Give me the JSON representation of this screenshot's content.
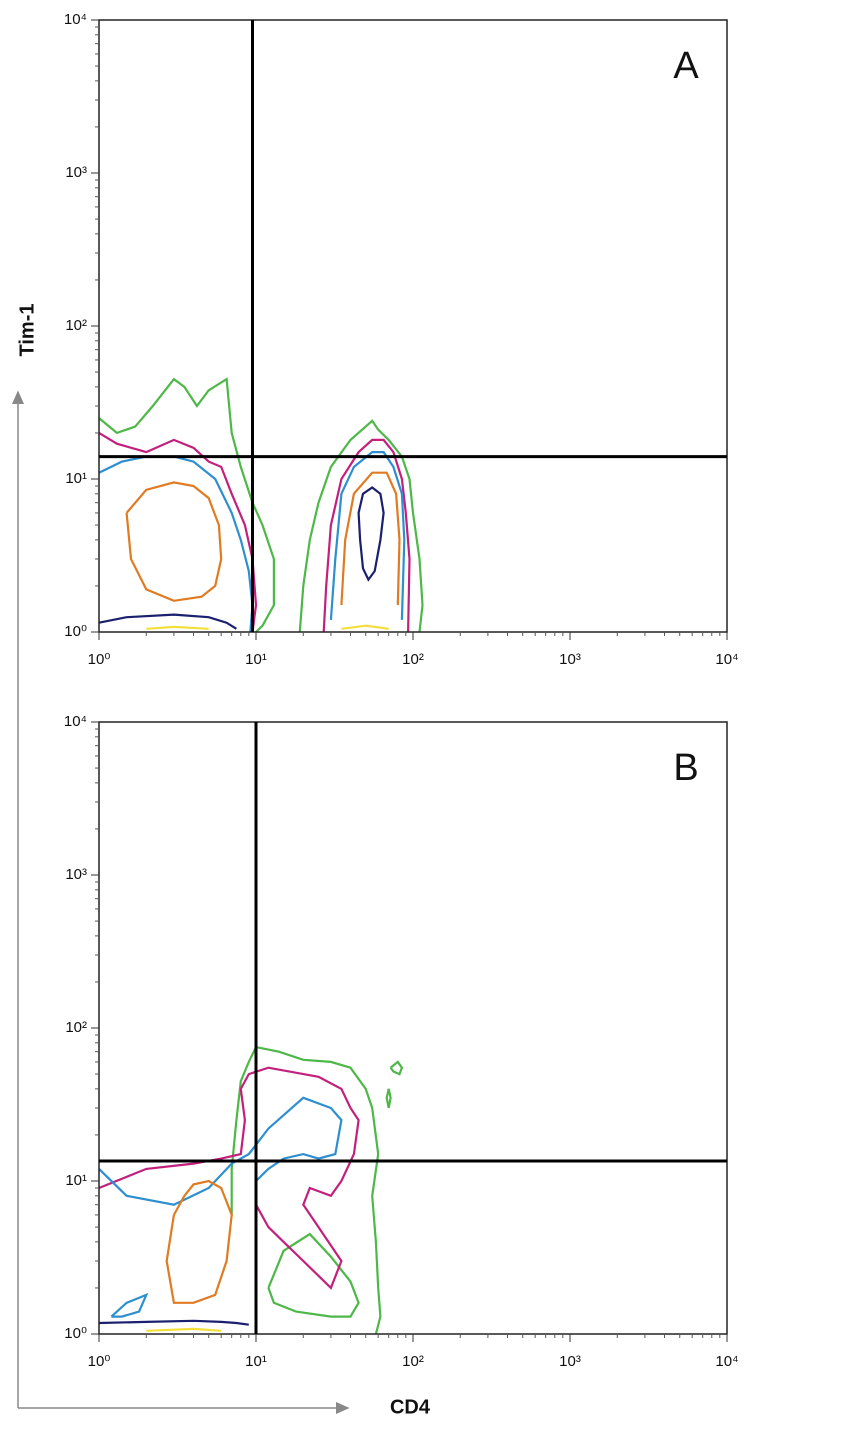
{
  "chart_data": [
    {
      "type": "contour",
      "panel_label": "A",
      "ylabel": "Tim-1",
      "log_scale": true,
      "xlim": [
        1,
        10000
      ],
      "ylim": [
        1,
        10000
      ],
      "xticks": [
        {
          "value": 1,
          "label": "10⁰"
        },
        {
          "value": 10,
          "label": "10¹"
        },
        {
          "value": 100,
          "label": "10²"
        },
        {
          "value": 1000,
          "label": "10³"
        },
        {
          "value": 10000,
          "label": "10⁴"
        }
      ],
      "yticks": [
        {
          "value": 1,
          "label": "10⁰"
        },
        {
          "value": 10,
          "label": "10¹"
        },
        {
          "value": 100,
          "label": "10²"
        },
        {
          "value": 1000,
          "label": "10³"
        },
        {
          "value": 10000,
          "label": "10⁴"
        }
      ],
      "xminorticks": [
        2,
        3,
        4,
        5,
        6,
        7,
        8,
        9,
        20,
        30,
        40,
        50,
        60,
        70,
        80,
        90,
        200,
        300,
        400,
        500,
        600,
        700,
        800,
        900,
        2000,
        3000,
        4000,
        5000,
        6000,
        7000,
        8000,
        9000
      ],
      "yminorticks": [
        2,
        3,
        4,
        5,
        6,
        7,
        8,
        9,
        20,
        30,
        40,
        50,
        60,
        70,
        80,
        90,
        200,
        300,
        400,
        500,
        600,
        700,
        800,
        900,
        2000,
        3000,
        4000,
        5000,
        6000,
        7000,
        8000,
        9000
      ],
      "quadrant": {
        "x": 9.5,
        "y": 14
      },
      "contours": [
        {
          "color": "#4db848",
          "x": [
            1,
            1.3,
            1.7,
            2.2,
            3,
            3.5,
            4.2,
            5,
            6.5,
            7,
            8,
            9.5,
            11,
            13,
            13,
            11,
            10
          ],
          "y": [
            25,
            20,
            22,
            30,
            45,
            40,
            30,
            38,
            45,
            20,
            12,
            7,
            5,
            3,
            1.5,
            1.1,
            1
          ]
        },
        {
          "color": "#c2207c",
          "x": [
            1,
            1.3,
            2,
            3,
            4,
            5,
            6,
            7,
            8.5,
            9.5,
            10,
            9.5
          ],
          "y": [
            20,
            17,
            15,
            18,
            16,
            13,
            12,
            8,
            5,
            3,
            1.5,
            1
          ]
        },
        {
          "color": "#2e8fd0",
          "x": [
            1,
            1.4,
            2,
            3,
            4,
            5.5,
            7,
            8,
            9,
            9.5,
            9.2
          ],
          "y": [
            11,
            13,
            14,
            14,
            13,
            10,
            6,
            4,
            2.5,
            1.5,
            1
          ]
        },
        {
          "color": "#e07b22",
          "x": [
            1.5,
            2,
            3,
            4,
            5,
            5.8,
            6,
            5.5,
            4.5,
            3,
            2,
            1.6,
            1.5
          ],
          "y": [
            6,
            8.5,
            9.5,
            9,
            7.5,
            5,
            3,
            2,
            1.7,
            1.6,
            1.9,
            3,
            6
          ]
        },
        {
          "color": "#1a1f6e",
          "x": [
            1,
            1.5,
            3,
            5,
            6.5,
            7.5
          ],
          "y": [
            1.15,
            1.25,
            1.3,
            1.25,
            1.15,
            1.05
          ]
        },
        {
          "color": "#f2df3a",
          "x": [
            2,
            3,
            5
          ],
          "y": [
            1.05,
            1.08,
            1.05
          ]
        },
        {
          "color": "#4db848",
          "x": [
            19,
            20,
            22,
            25,
            30,
            40,
            50,
            55,
            60,
            70,
            85,
            95,
            100,
            110,
            115,
            110
          ],
          "y": [
            1,
            2,
            4,
            7,
            12,
            18,
            22,
            24,
            21,
            18,
            14,
            10,
            6,
            3,
            1.5,
            1
          ]
        },
        {
          "color": "#c2207c",
          "x": [
            27,
            28,
            30,
            35,
            45,
            55,
            65,
            75,
            85,
            90,
            95,
            93
          ],
          "y": [
            1,
            2,
            5,
            10,
            15,
            18,
            18,
            15,
            10,
            6,
            3,
            1
          ]
        },
        {
          "color": "#2e8fd0",
          "x": [
            30,
            32,
            35,
            42,
            55,
            65,
            75,
            85,
            88,
            85
          ],
          "y": [
            1.2,
            3,
            8,
            12,
            15,
            15,
            12,
            8,
            4,
            1.2
          ]
        },
        {
          "color": "#e07b22",
          "x": [
            35,
            37,
            42,
            55,
            68,
            78,
            82,
            80
          ],
          "y": [
            1.5,
            4,
            8,
            11,
            11,
            8,
            4,
            1.5
          ]
        },
        {
          "color": "#1a1f6e",
          "x": [
            46,
            45,
            48,
            55,
            62,
            65,
            62,
            57,
            52,
            48,
            46
          ],
          "y": [
            4,
            6,
            8,
            8.8,
            8,
            6,
            4,
            2.5,
            2.2,
            2.6,
            4
          ]
        },
        {
          "color": "#f2df3a",
          "x": [
            35,
            50,
            70
          ],
          "y": [
            1.05,
            1.1,
            1.05
          ]
        }
      ]
    },
    {
      "type": "contour",
      "panel_label": "B",
      "xlabel": "CD4",
      "log_scale": true,
      "xlim": [
        1,
        10000
      ],
      "ylim": [
        1,
        10000
      ],
      "xticks": [
        {
          "value": 1,
          "label": "10⁰"
        },
        {
          "value": 10,
          "label": "10¹"
        },
        {
          "value": 100,
          "label": "10²"
        },
        {
          "value": 1000,
          "label": "10³"
        },
        {
          "value": 10000,
          "label": "10⁴"
        }
      ],
      "yticks": [
        {
          "value": 1,
          "label": "10⁰"
        },
        {
          "value": 10,
          "label": "10¹"
        },
        {
          "value": 100,
          "label": "10²"
        },
        {
          "value": 1000,
          "label": "10³"
        },
        {
          "value": 10000,
          "label": "10⁴"
        }
      ],
      "xminorticks": [
        2,
        3,
        4,
        5,
        6,
        7,
        8,
        9,
        20,
        30,
        40,
        50,
        60,
        70,
        80,
        90,
        200,
        300,
        400,
        500,
        600,
        700,
        800,
        900,
        2000,
        3000,
        4000,
        5000,
        6000,
        7000,
        8000,
        9000
      ],
      "yminorticks": [
        2,
        3,
        4,
        5,
        6,
        7,
        8,
        9,
        20,
        30,
        40,
        50,
        60,
        70,
        80,
        90,
        200,
        300,
        400,
        500,
        600,
        700,
        800,
        900,
        2000,
        3000,
        4000,
        5000,
        6000,
        7000,
        8000,
        9000
      ],
      "quadrant": {
        "x": 10,
        "y": 13.5
      },
      "contours": [
        {
          "color": "#4db848",
          "x": [
            7,
            7,
            7.5,
            8,
            9,
            10,
            14,
            20,
            30,
            40,
            50,
            55,
            60,
            55,
            58,
            60,
            62,
            58
          ],
          "y": [
            6,
            12,
            25,
            45,
            60,
            75,
            70,
            62,
            60,
            55,
            40,
            30,
            15,
            8,
            4,
            2,
            1.3,
            1
          ]
        },
        {
          "color": "#4db848",
          "x": [
            72,
            80,
            85,
            82,
            75,
            72
          ],
          "y": [
            55,
            60,
            55,
            50,
            52,
            55
          ]
        },
        {
          "color": "#4db848",
          "x": [
            70,
            72,
            70,
            68,
            70
          ],
          "y": [
            30,
            35,
            40,
            35,
            30
          ]
        },
        {
          "color": "#4db848",
          "x": [
            12,
            15,
            22,
            30,
            40,
            45,
            40,
            30,
            18,
            13,
            12
          ],
          "y": [
            2,
            3.5,
            4.5,
            3.2,
            2.2,
            1.6,
            1.3,
            1.3,
            1.4,
            1.6,
            2
          ]
        },
        {
          "color": "#c2207c",
          "x": [
            1,
            2,
            4,
            6,
            8,
            8.5,
            8,
            9,
            12,
            20,
            25,
            35,
            40,
            45,
            42,
            35,
            30,
            22,
            20,
            25,
            35,
            30,
            20,
            15,
            12,
            10,
            10
          ],
          "y": [
            9,
            12,
            13,
            14,
            15,
            25,
            40,
            50,
            55,
            50,
            48,
            40,
            30,
            25,
            15,
            10,
            8,
            9,
            7,
            5,
            3,
            2,
            3,
            4,
            5,
            7,
            9
          ]
        },
        {
          "color": "#2e8fd0",
          "x": [
            1,
            1.5,
            3,
            5,
            6,
            7,
            9,
            12,
            20,
            30,
            35,
            32,
            25,
            20,
            15,
            12,
            10
          ],
          "y": [
            12,
            8,
            7,
            9,
            11,
            13,
            15,
            22,
            35,
            30,
            25,
            15,
            14,
            15,
            14,
            12,
            10
          ]
        },
        {
          "color": "#e07b22",
          "x": [
            3,
            2.7,
            3,
            4,
            5.5,
            6.5,
            7,
            6,
            5,
            4,
            3.5,
            3
          ],
          "y": [
            6,
            3,
            1.6,
            1.6,
            1.8,
            3,
            6,
            9,
            10,
            9.5,
            8,
            6
          ]
        },
        {
          "color": "#2e8fd0",
          "x": [
            1.2,
            1.5,
            2,
            1.8,
            1.4,
            1.2
          ],
          "y": [
            1.3,
            1.6,
            1.8,
            1.4,
            1.3,
            1.3
          ]
        },
        {
          "color": "#1a1f6e",
          "x": [
            1,
            2,
            4,
            6,
            7.5,
            9
          ],
          "y": [
            1.18,
            1.2,
            1.22,
            1.2,
            1.18,
            1.15
          ]
        },
        {
          "color": "#f2df3a",
          "x": [
            2,
            4,
            6
          ],
          "y": [
            1.05,
            1.08,
            1.05
          ]
        }
      ]
    }
  ]
}
